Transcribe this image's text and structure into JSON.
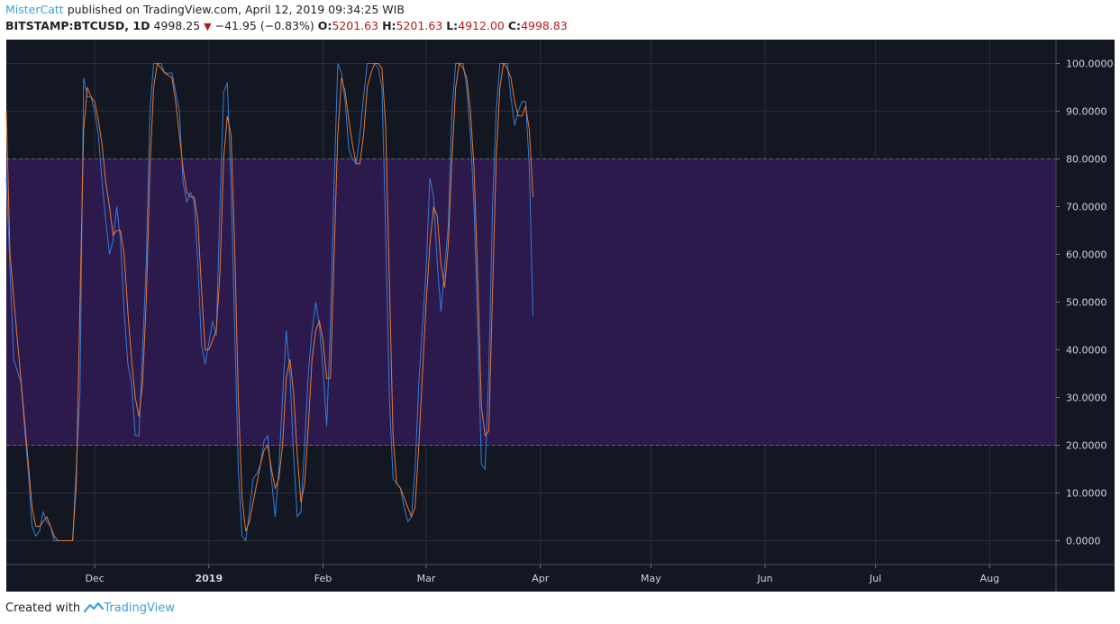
{
  "header": {
    "author": "MisterCatt",
    "published_text": "published on TradingView.com, April 12, 2019 09:34:25 WIB",
    "symbol": "BITSTAMP:BTCUSD, 1D",
    "price": "4998.25",
    "change": "−41.95 (−0.83%)",
    "o_label": "O:",
    "o_value": "5201.63",
    "h_label": "H:",
    "h_value": "5201.63",
    "l_label": "L:",
    "l_value": "4912.00",
    "c_label": "C:",
    "c_value": "4998.83"
  },
  "footer": {
    "created_with": "Created with",
    "brand": "TradingView"
  },
  "colors": {
    "background": "#131722",
    "band": "#2e1a50",
    "k_line": "#2f7ddb",
    "d_line": "#e8772e",
    "grid": "#2a2e39",
    "dashed": "#5d606b",
    "negative": "#b51b1b",
    "link": "#3ba1d6"
  },
  "chart_data": {
    "type": "line",
    "title": "",
    "xlabel": "",
    "ylabel": "",
    "ylim": [
      -5,
      105
    ],
    "y_ticks": [
      "100.0000",
      "90.0000",
      "80.0000",
      "70.0000",
      "60.0000",
      "50.0000",
      "40.0000",
      "30.0000",
      "20.0000",
      "10.0000",
      "0.0000"
    ],
    "y_tick_values": [
      100,
      90,
      80,
      70,
      60,
      50,
      40,
      30,
      20,
      10,
      0
    ],
    "x_ticks": [
      "Dec",
      "2019",
      "Feb",
      "Mar",
      "Apr",
      "May",
      "Jun",
      "Jul",
      "Aug"
    ],
    "x_tick_days": [
      0,
      31,
      62,
      90,
      121,
      151,
      182,
      212,
      243
    ],
    "x_range_days": [
      -24,
      261
    ],
    "band": [
      20,
      80
    ],
    "grid": true,
    "series": [
      {
        "values": [
          [
            -24,
            76
          ],
          [
            -22,
            38
          ],
          [
            -20,
            33
          ],
          [
            -18,
            14
          ],
          [
            -17,
            3
          ],
          [
            -16,
            1
          ],
          [
            -15,
            2
          ],
          [
            -14,
            6
          ],
          [
            -13,
            4
          ],
          [
            -12,
            3
          ],
          [
            -11,
            0
          ],
          [
            -6,
            0
          ],
          [
            -4,
            31
          ],
          [
            -3,
            97
          ],
          [
            -2,
            93
          ],
          [
            -1,
            93
          ],
          [
            0,
            90
          ],
          [
            1,
            85
          ],
          [
            2,
            75
          ],
          [
            3,
            67
          ],
          [
            4,
            60
          ],
          [
            5,
            63
          ],
          [
            6,
            70
          ],
          [
            7,
            63
          ],
          [
            8,
            48
          ],
          [
            9,
            37
          ],
          [
            10,
            33
          ],
          [
            11,
            22
          ],
          [
            12,
            22
          ],
          [
            14,
            58
          ],
          [
            15,
            90
          ],
          [
            16,
            100
          ],
          [
            18,
            100
          ],
          [
            19,
            98
          ],
          [
            21,
            98
          ],
          [
            23,
            90
          ],
          [
            24,
            75
          ],
          [
            25,
            71
          ],
          [
            26,
            73
          ],
          [
            27,
            71
          ],
          [
            28,
            58
          ],
          [
            29,
            41
          ],
          [
            30,
            37
          ],
          [
            32,
            46
          ],
          [
            33,
            43
          ],
          [
            34,
            70
          ],
          [
            35,
            94
          ],
          [
            36,
            96
          ],
          [
            37,
            75
          ],
          [
            38,
            45
          ],
          [
            39,
            15
          ],
          [
            40,
            1
          ],
          [
            41,
            0
          ],
          [
            42,
            6
          ],
          [
            43,
            13
          ],
          [
            44,
            14
          ],
          [
            45,
            16
          ],
          [
            46,
            21
          ],
          [
            47,
            22
          ],
          [
            48,
            13
          ],
          [
            49,
            5
          ],
          [
            50,
            15
          ],
          [
            51,
            30
          ],
          [
            52,
            44
          ],
          [
            53,
            35
          ],
          [
            54,
            18
          ],
          [
            55,
            5
          ],
          [
            56,
            6
          ],
          [
            57,
            20
          ],
          [
            58,
            35
          ],
          [
            59,
            44
          ],
          [
            60,
            50
          ],
          [
            61,
            45
          ],
          [
            62,
            36
          ],
          [
            63,
            24
          ],
          [
            64,
            45
          ],
          [
            65,
            75
          ],
          [
            66,
            100
          ],
          [
            67,
            98
          ],
          [
            68,
            92
          ],
          [
            69,
            82
          ],
          [
            70,
            80
          ],
          [
            71,
            79
          ],
          [
            72,
            85
          ],
          [
            73,
            93
          ],
          [
            74,
            100
          ],
          [
            76,
            100
          ],
          [
            77,
            99
          ],
          [
            78,
            95
          ],
          [
            79,
            65
          ],
          [
            80,
            30
          ],
          [
            81,
            13
          ],
          [
            82,
            12
          ],
          [
            83,
            11
          ],
          [
            84,
            7
          ],
          [
            85,
            4
          ],
          [
            86,
            5
          ],
          [
            87,
            15
          ],
          [
            88,
            33
          ],
          [
            89,
            45
          ],
          [
            90,
            57
          ],
          [
            91,
            76
          ],
          [
            92,
            72
          ],
          [
            93,
            58
          ],
          [
            94,
            48
          ],
          [
            95,
            57
          ],
          [
            96,
            66
          ],
          [
            97,
            90
          ],
          [
            98,
            100
          ],
          [
            100,
            100
          ],
          [
            101,
            95
          ],
          [
            102,
            85
          ],
          [
            103,
            70
          ],
          [
            104,
            45
          ],
          [
            105,
            16
          ],
          [
            106,
            15
          ],
          [
            107,
            35
          ],
          [
            108,
            70
          ],
          [
            109,
            90
          ],
          [
            110,
            100
          ],
          [
            112,
            100
          ],
          [
            113,
            93
          ],
          [
            114,
            87
          ],
          [
            115,
            90
          ],
          [
            116,
            92
          ],
          [
            117,
            92
          ],
          [
            118,
            78
          ],
          [
            119,
            47
          ]
        ]
      },
      {
        "values": [
          [
            -24,
            90
          ],
          [
            -23,
            60
          ],
          [
            -21,
            42
          ],
          [
            -19,
            25
          ],
          [
            -17,
            7
          ],
          [
            -16,
            3
          ],
          [
            -15,
            3
          ],
          [
            -14,
            4
          ],
          [
            -13,
            5
          ],
          [
            -12,
            3
          ],
          [
            -11,
            1
          ],
          [
            -10,
            0
          ],
          [
            -6,
            0
          ],
          [
            -5,
            12
          ],
          [
            -4,
            50
          ],
          [
            -3,
            86
          ],
          [
            -2,
            95
          ],
          [
            -1,
            93
          ],
          [
            0,
            92
          ],
          [
            1,
            88
          ],
          [
            2,
            83
          ],
          [
            3,
            75
          ],
          [
            4,
            70
          ],
          [
            5,
            64
          ],
          [
            6,
            65
          ],
          [
            7,
            65
          ],
          [
            8,
            60
          ],
          [
            9,
            48
          ],
          [
            10,
            38
          ],
          [
            11,
            30
          ],
          [
            12,
            26
          ],
          [
            13,
            33
          ],
          [
            14,
            50
          ],
          [
            15,
            78
          ],
          [
            16,
            95
          ],
          [
            17,
            100
          ],
          [
            18,
            99
          ],
          [
            19,
            98
          ],
          [
            21,
            97
          ],
          [
            22,
            92
          ],
          [
            23,
            85
          ],
          [
            24,
            78
          ],
          [
            25,
            73
          ],
          [
            26,
            72
          ],
          [
            27,
            72
          ],
          [
            28,
            67
          ],
          [
            29,
            53
          ],
          [
            30,
            40
          ],
          [
            31,
            40
          ],
          [
            32,
            42
          ],
          [
            33,
            44
          ],
          [
            34,
            56
          ],
          [
            35,
            80
          ],
          [
            36,
            89
          ],
          [
            37,
            85
          ],
          [
            38,
            62
          ],
          [
            39,
            30
          ],
          [
            40,
            9
          ],
          [
            41,
            2
          ],
          [
            42,
            4
          ],
          [
            43,
            8
          ],
          [
            44,
            12
          ],
          [
            45,
            16
          ],
          [
            46,
            19
          ],
          [
            47,
            20
          ],
          [
            48,
            15
          ],
          [
            49,
            11
          ],
          [
            50,
            13
          ],
          [
            51,
            20
          ],
          [
            52,
            34
          ],
          [
            53,
            38
          ],
          [
            54,
            31
          ],
          [
            55,
            18
          ],
          [
            56,
            8
          ],
          [
            57,
            12
          ],
          [
            58,
            24
          ],
          [
            59,
            38
          ],
          [
            60,
            44
          ],
          [
            61,
            46
          ],
          [
            62,
            42
          ],
          [
            63,
            34
          ],
          [
            64,
            34
          ],
          [
            65,
            60
          ],
          [
            66,
            85
          ],
          [
            67,
            97
          ],
          [
            68,
            94
          ],
          [
            69,
            88
          ],
          [
            70,
            83
          ],
          [
            71,
            79
          ],
          [
            72,
            79
          ],
          [
            73,
            85
          ],
          [
            74,
            95
          ],
          [
            75,
            98
          ],
          [
            76,
            100
          ],
          [
            77,
            100
          ],
          [
            78,
            99
          ],
          [
            79,
            87
          ],
          [
            80,
            55
          ],
          [
            81,
            22
          ],
          [
            82,
            12
          ],
          [
            83,
            11
          ],
          [
            84,
            9
          ],
          [
            85,
            7
          ],
          [
            86,
            5
          ],
          [
            87,
            7
          ],
          [
            88,
            20
          ],
          [
            89,
            35
          ],
          [
            90,
            50
          ],
          [
            91,
            62
          ],
          [
            92,
            70
          ],
          [
            93,
            68
          ],
          [
            94,
            58
          ],
          [
            95,
            53
          ],
          [
            96,
            62
          ],
          [
            97,
            80
          ],
          [
            98,
            95
          ],
          [
            99,
            100
          ],
          [
            100,
            99
          ],
          [
            101,
            97
          ],
          [
            102,
            90
          ],
          [
            103,
            78
          ],
          [
            104,
            55
          ],
          [
            105,
            28
          ],
          [
            106,
            22
          ],
          [
            107,
            23
          ],
          [
            108,
            52
          ],
          [
            109,
            80
          ],
          [
            110,
            95
          ],
          [
            111,
            100
          ],
          [
            112,
            99
          ],
          [
            113,
            97
          ],
          [
            114,
            92
          ],
          [
            115,
            89
          ],
          [
            116,
            89
          ],
          [
            117,
            91
          ],
          [
            118,
            86
          ],
          [
            119,
            72
          ]
        ]
      }
    ]
  }
}
